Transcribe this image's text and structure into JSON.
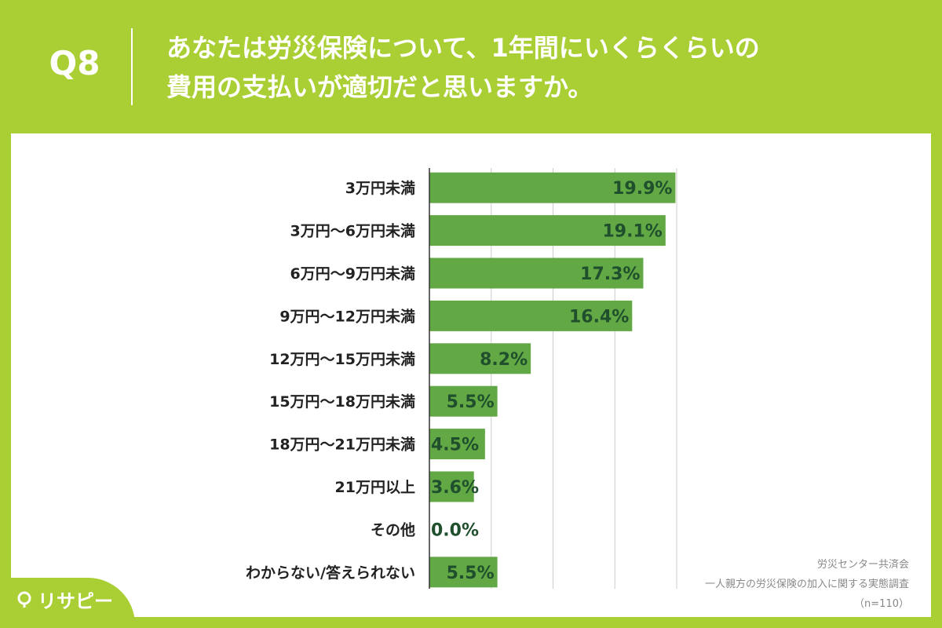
{
  "header": {
    "question_number": "Q8",
    "title_line1": "あなたは労災保険について、1年間にいくらくらいの",
    "title_line2": "費用の支払いが適切だと思いますか。"
  },
  "chart_data": {
    "type": "bar",
    "orientation": "horizontal",
    "categories": [
      "3万円未満",
      "3万円〜6万円未満",
      "6万円〜9万円未満",
      "9万円〜12万円未満",
      "12万円〜15万円未満",
      "15万円〜18万円未満",
      "18万円〜21万円未満",
      "21万円以上",
      "その他",
      "わからない/答えられない"
    ],
    "values": [
      19.9,
      19.1,
      17.3,
      16.4,
      8.2,
      5.5,
      4.5,
      3.6,
      0.0,
      5.5
    ],
    "value_labels": [
      "19.9%",
      "19.1%",
      "17.3%",
      "16.4%",
      "8.2%",
      "5.5%",
      "4.5%",
      "3.6%",
      "0.0%",
      "5.5%"
    ],
    "xlim": [
      0,
      20
    ],
    "grid": true,
    "bar_color": "#62a844",
    "label_color": "#1f4f2c"
  },
  "footnote": {
    "source": "労災センター共済会",
    "survey": "一人親方の労災保険の加入に関する実態調査",
    "sample": "（n=110）"
  },
  "brand": {
    "logo_text": "リサピー",
    "icon": "pin-icon"
  },
  "colors": {
    "background": "#a9cf34",
    "panel": "#ffffff"
  }
}
